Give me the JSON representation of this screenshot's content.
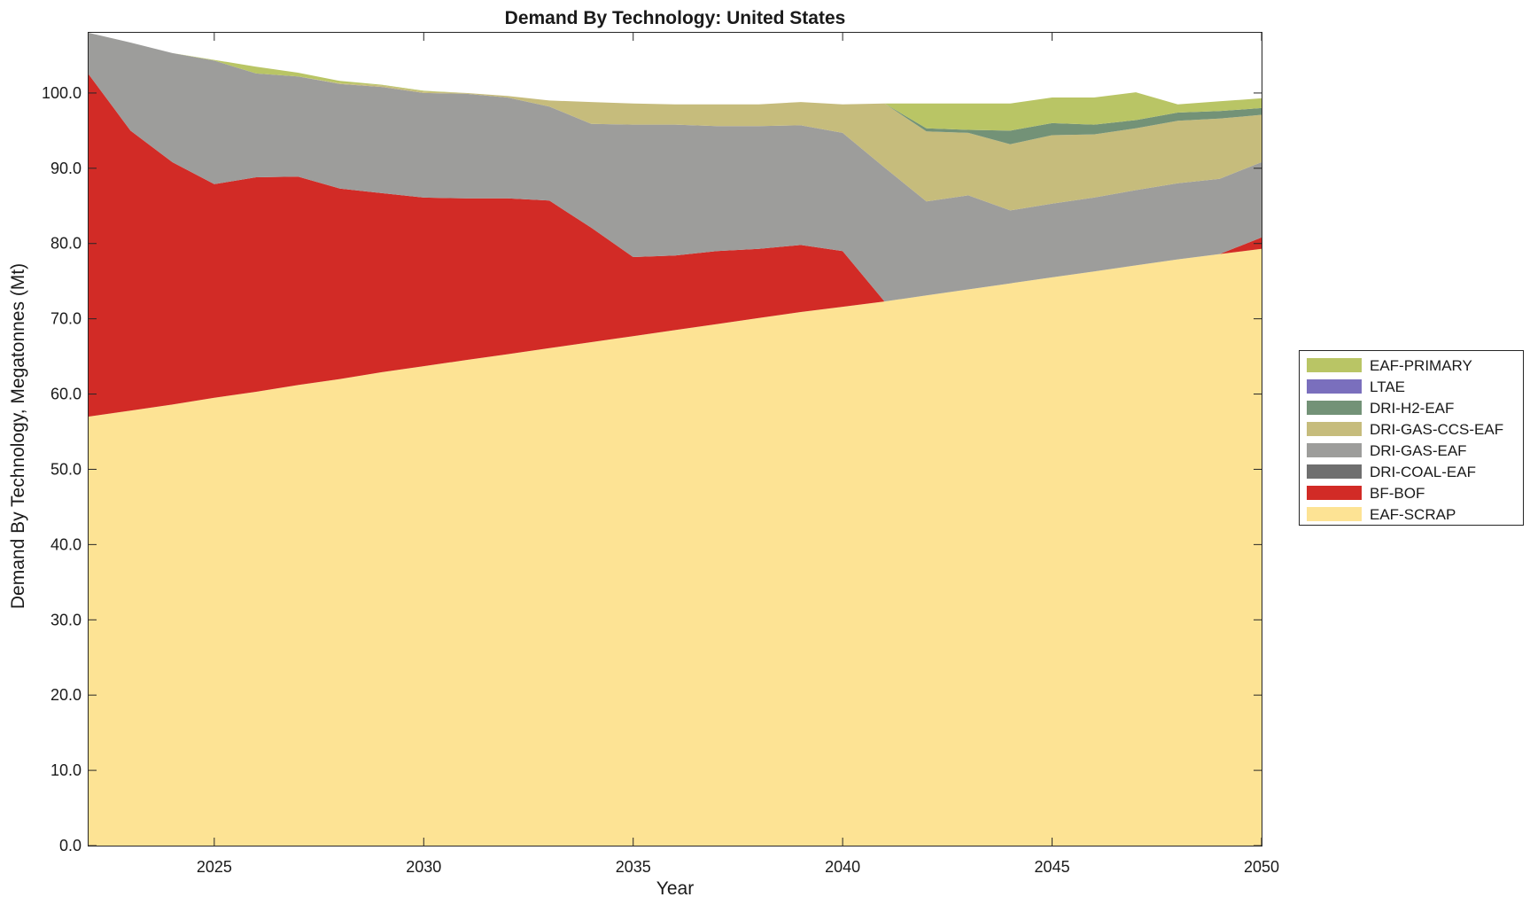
{
  "chart_data": {
    "type": "area",
    "stacked": true,
    "title": "Demand By Technology: United States",
    "xlabel": "Year",
    "ylabel": "Demand By Technology, Megatonnes (Mt)",
    "xlim": [
      2022,
      2050
    ],
    "ylim": [
      0,
      108
    ],
    "xticks": [
      2025,
      2030,
      2035,
      2040,
      2045,
      2050
    ],
    "yticks": [
      "0.0",
      "10.0",
      "20.0",
      "30.0",
      "40.0",
      "50.0",
      "60.0",
      "70.0",
      "80.0",
      "90.0",
      "100.0"
    ],
    "grid": false,
    "legend_position": "right",
    "x": [
      2022,
      2023,
      2024,
      2025,
      2026,
      2027,
      2028,
      2029,
      2030,
      2031,
      2032,
      2033,
      2034,
      2035,
      2036,
      2037,
      2038,
      2039,
      2040,
      2041,
      2042,
      2043,
      2044,
      2045,
      2046,
      2047,
      2048,
      2049,
      2050
    ],
    "series": [
      {
        "name": "EAF-SCRAP",
        "color": "#fde394",
        "values": [
          57.0,
          57.8,
          58.6,
          59.5,
          60.3,
          61.2,
          62.0,
          62.9,
          63.7,
          64.5,
          65.3,
          66.1,
          66.9,
          67.7,
          68.5,
          69.3,
          70.1,
          70.9,
          71.6,
          72.3,
          73.1,
          73.9,
          74.7,
          75.5,
          76.3,
          77.1,
          77.9,
          78.6,
          79.3
        ]
      },
      {
        "name": "BF-BOF",
        "color": "#d22b26",
        "values": [
          45.5,
          37.2,
          32.2,
          28.4,
          28.5,
          27.7,
          25.3,
          23.8,
          22.4,
          21.5,
          20.7,
          19.6,
          15.2,
          10.5,
          9.9,
          9.7,
          9.2,
          8.9,
          7.4,
          0.0,
          0.0,
          0.0,
          0.0,
          0.0,
          0.0,
          0.0,
          0.0,
          0.0,
          1.5
        ]
      },
      {
        "name": "DRI-COAL-EAF",
        "color": "#6f6f6f",
        "values": [
          0,
          0,
          0,
          0,
          0,
          0,
          0,
          0,
          0,
          0,
          0,
          0,
          0,
          0,
          0,
          0,
          0,
          0,
          0,
          0,
          0,
          0,
          0,
          0,
          0,
          0,
          0,
          0,
          0
        ]
      },
      {
        "name": "DRI-GAS-EAF",
        "color": "#9d9d9b",
        "values": [
          5.5,
          11.7,
          14.5,
          16.4,
          13.8,
          13.3,
          13.9,
          14.1,
          13.9,
          13.9,
          13.4,
          12.5,
          13.8,
          17.6,
          17.4,
          16.6,
          16.3,
          15.9,
          15.7,
          17.8,
          12.5,
          12.5,
          9.7,
          9.8,
          9.8,
          10.0,
          10.1,
          10.0,
          10.0
        ]
      },
      {
        "name": "DRI-GAS-CCS-EAF",
        "color": "#c6bc7c",
        "values": [
          0,
          0,
          0,
          0,
          0,
          0,
          0.1,
          0.2,
          0.2,
          0.1,
          0.2,
          0.8,
          2.9,
          2.8,
          2.7,
          2.9,
          2.9,
          3.1,
          3.8,
          8.5,
          9.3,
          8.3,
          8.8,
          9.1,
          8.4,
          8.2,
          8.3,
          8.0,
          6.3
        ]
      },
      {
        "name": "DRI-H2-EAF",
        "color": "#739277",
        "values": [
          0,
          0,
          0,
          0,
          0,
          0,
          0,
          0,
          0,
          0,
          0,
          0,
          0,
          0,
          0,
          0,
          0,
          0,
          0,
          0,
          0.4,
          0.4,
          1.8,
          1.6,
          1.3,
          1.1,
          1.1,
          1.0,
          0.9
        ]
      },
      {
        "name": "LTAE",
        "color": "#7a6fbd",
        "values": [
          0,
          0,
          0,
          0,
          0,
          0,
          0,
          0,
          0,
          0,
          0,
          0,
          0,
          0,
          0,
          0,
          0,
          0,
          0,
          0,
          0,
          0,
          0,
          0,
          0,
          0,
          0,
          0,
          0
        ]
      },
      {
        "name": "EAF-PRIMARY",
        "color": "#b9c565",
        "values": [
          0,
          0,
          0,
          0.1,
          0.9,
          0.5,
          0.3,
          0.1,
          0.1,
          0,
          0,
          0,
          0,
          0,
          0,
          0,
          0,
          0,
          0,
          0,
          3.3,
          3.5,
          3.6,
          3.4,
          3.6,
          3.7,
          1.1,
          1.3,
          1.3
        ]
      }
    ]
  }
}
